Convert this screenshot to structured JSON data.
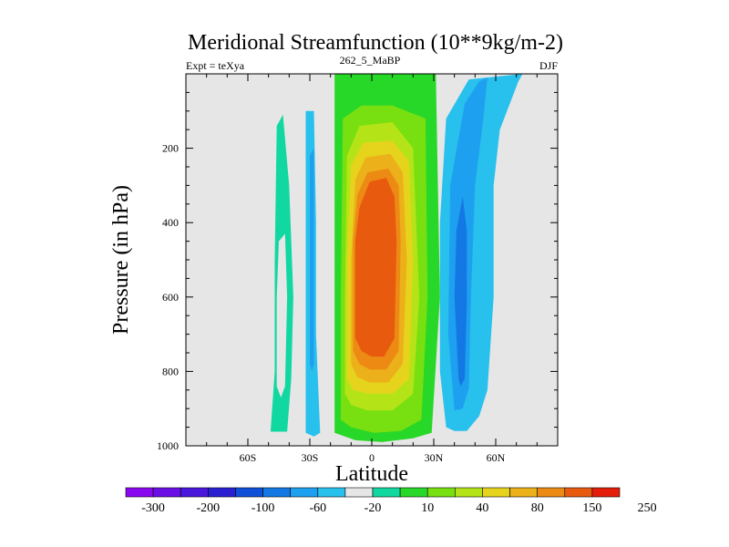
{
  "chart_data": {
    "type": "filled-contour",
    "title": "Meridional Streamfunction (10**9kg/m-2)",
    "left_string": "Expt = teXya",
    "center_string": "262_5_MaBP",
    "right_string": "DJF",
    "xlabel": "Latitude",
    "ylabel": "Pressure (in hPa)",
    "xlim": [
      -90,
      90
    ],
    "ylim": [
      1000,
      0
    ],
    "x_ticks": [
      {
        "value": -60,
        "label": "60S"
      },
      {
        "value": -30,
        "label": "30S"
      },
      {
        "value": 0,
        "label": "0"
      },
      {
        "value": 30,
        "label": "30N"
      },
      {
        "value": 60,
        "label": "60N"
      }
    ],
    "y_ticks": [
      {
        "value": 200,
        "label": "200"
      },
      {
        "value": 400,
        "label": "400"
      },
      {
        "value": 600,
        "label": "600"
      },
      {
        "value": 800,
        "label": "800"
      },
      {
        "value": 1000,
        "label": "1000"
      }
    ],
    "colorbar": {
      "colors": [
        "#8a08f0",
        "#6a10e6",
        "#4a18dc",
        "#2a20d2",
        "#1050d8",
        "#1478e4",
        "#1ea0f0",
        "#28c0ec",
        "#e6e6e6",
        "#10d8a0",
        "#28d828",
        "#78e010",
        "#b4e418",
        "#e6d41c",
        "#ecb01a",
        "#ec8a14",
        "#e85a0e",
        "#e41e0a"
      ],
      "labels": [
        "-300",
        "-200",
        "-100",
        "-60",
        "-20",
        "10",
        "40",
        "80",
        "150",
        "250"
      ]
    },
    "contour_regions": [
      {
        "level_index": 9,
        "points": [
          [
            -49,
            962
          ],
          [
            -47,
            800
          ],
          [
            -47,
            500
          ],
          [
            -46,
            140
          ],
          [
            -43,
            110
          ],
          [
            -40,
            300
          ],
          [
            -38,
            600
          ],
          [
            -39,
            820
          ],
          [
            -41,
            962
          ]
        ]
      },
      {
        "level_index": 8,
        "points": [
          [
            -46,
            840
          ],
          [
            -46,
            600
          ],
          [
            -45,
            450
          ],
          [
            -42,
            430
          ],
          [
            -41,
            600
          ],
          [
            -42,
            840
          ],
          [
            -44,
            870
          ]
        ]
      },
      {
        "level_index": 7,
        "points": [
          [
            -32,
            965
          ],
          [
            -32,
            700
          ],
          [
            -32,
            400
          ],
          [
            -32,
            100
          ],
          [
            -28,
            100
          ],
          [
            -27,
            400
          ],
          [
            -27,
            700
          ],
          [
            -25,
            965
          ],
          [
            -28,
            975
          ]
        ]
      },
      {
        "level_index": 6,
        "points": [
          [
            -30,
            780
          ],
          [
            -30,
            500
          ],
          [
            -30,
            220
          ],
          [
            -28,
            200
          ],
          [
            -28,
            500
          ],
          [
            -28,
            780
          ],
          [
            -29,
            800
          ]
        ]
      },
      {
        "level_index": 10,
        "points": [
          [
            -18,
            965
          ],
          [
            -18,
            600
          ],
          [
            -18,
            0
          ],
          [
            31,
            0
          ],
          [
            33,
            600
          ],
          [
            29,
            965
          ],
          [
            20,
            980
          ],
          [
            5,
            990
          ],
          [
            -8,
            985
          ]
        ]
      },
      {
        "level_index": 11,
        "points": [
          [
            -15,
            930
          ],
          [
            -15,
            600
          ],
          [
            -14,
            120
          ],
          [
            -5,
            85
          ],
          [
            10,
            85
          ],
          [
            26,
            120
          ],
          [
            27,
            600
          ],
          [
            24,
            930
          ],
          [
            14,
            960
          ],
          [
            1,
            965
          ],
          [
            -10,
            950
          ]
        ]
      },
      {
        "level_index": 12,
        "points": [
          [
            -13,
            860
          ],
          [
            -13,
            600
          ],
          [
            -12,
            220
          ],
          [
            -6,
            140
          ],
          [
            10,
            130
          ],
          [
            20,
            200
          ],
          [
            23,
            600
          ],
          [
            20,
            860
          ],
          [
            10,
            905
          ],
          [
            -2,
            905
          ],
          [
            -10,
            890
          ]
        ]
      },
      {
        "level_index": 13,
        "points": [
          [
            -12,
            820
          ],
          [
            -12,
            500
          ],
          [
            -10,
            245
          ],
          [
            -4,
            185
          ],
          [
            10,
            180
          ],
          [
            18,
            235
          ],
          [
            20,
            500
          ],
          [
            18,
            820
          ],
          [
            10,
            860
          ],
          [
            -2,
            860
          ],
          [
            -9,
            850
          ]
        ]
      },
      {
        "level_index": 14,
        "points": [
          [
            -10,
            780
          ],
          [
            -10,
            500
          ],
          [
            -8,
            285
          ],
          [
            -3,
            225
          ],
          [
            9,
            215
          ],
          [
            15,
            265
          ],
          [
            17,
            500
          ],
          [
            15,
            780
          ],
          [
            8,
            830
          ],
          [
            -1,
            830
          ],
          [
            -7,
            815
          ]
        ]
      },
      {
        "level_index": 15,
        "points": [
          [
            -9,
            745
          ],
          [
            -9,
            450
          ],
          [
            -7,
            325
          ],
          [
            -2,
            265
          ],
          [
            8,
            255
          ],
          [
            13,
            300
          ],
          [
            14,
            450
          ],
          [
            13,
            745
          ],
          [
            7,
            795
          ],
          [
            -1,
            795
          ],
          [
            -6,
            780
          ]
        ]
      },
      {
        "level_index": 16,
        "points": [
          [
            -8,
            710
          ],
          [
            -8,
            450
          ],
          [
            -6,
            360
          ],
          [
            -1,
            290
          ],
          [
            7,
            280
          ],
          [
            11,
            330
          ],
          [
            12,
            450
          ],
          [
            11,
            710
          ],
          [
            6,
            760
          ],
          [
            0,
            760
          ],
          [
            -5,
            745
          ]
        ]
      },
      {
        "level_index": 7,
        "points": [
          [
            36,
            950
          ],
          [
            33,
            800
          ],
          [
            33,
            400
          ],
          [
            36,
            120
          ],
          [
            47,
            15
          ],
          [
            73,
            0
          ],
          [
            71,
            20
          ],
          [
            62,
            150
          ],
          [
            59,
            300
          ],
          [
            59,
            600
          ],
          [
            56,
            850
          ],
          [
            52,
            920
          ],
          [
            46,
            960
          ],
          [
            40,
            960
          ]
        ]
      },
      {
        "level_index": 6,
        "points": [
          [
            40,
            905
          ],
          [
            37,
            700
          ],
          [
            38,
            300
          ],
          [
            45,
            80
          ],
          [
            52,
            20
          ],
          [
            56,
            10
          ],
          [
            54,
            120
          ],
          [
            50,
            300
          ],
          [
            48,
            600
          ],
          [
            47,
            845
          ],
          [
            44,
            900
          ]
        ]
      },
      {
        "level_index": 5,
        "points": [
          [
            42,
            820
          ],
          [
            40,
            600
          ],
          [
            41,
            420
          ],
          [
            44,
            330
          ],
          [
            46,
            420
          ],
          [
            46,
            620
          ],
          [
            45,
            820
          ],
          [
            43,
            840
          ]
        ]
      }
    ]
  }
}
